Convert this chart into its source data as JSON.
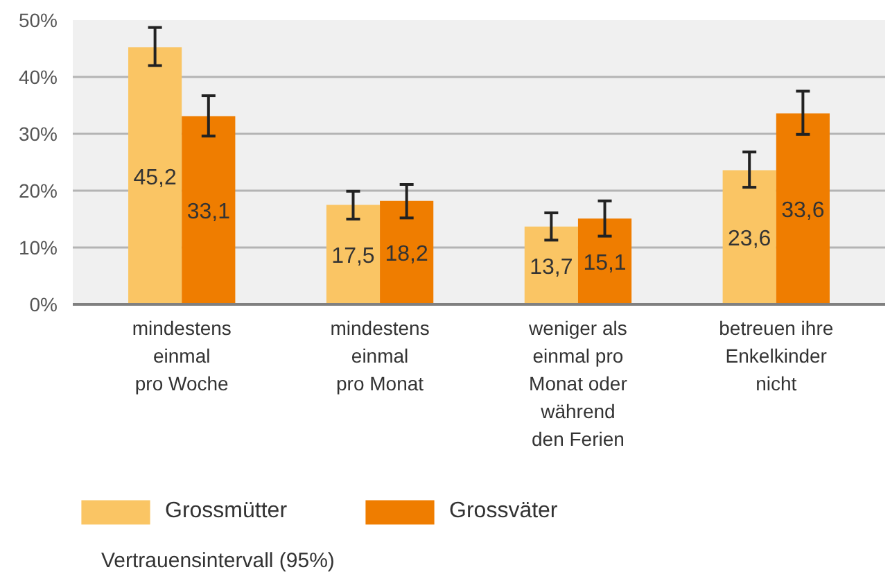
{
  "chart_data": {
    "type": "bar",
    "categories": [
      "mindestens\neinmal\npro Woche",
      "mindestens\neinmal\npro Monat",
      "weniger als\neinmal pro\nMonat oder\nwährend\nden Ferien",
      "betreuen ihre\nEnkelkinder\nnicht"
    ],
    "series": [
      {
        "name": "Grossmütter",
        "color": "#fac564",
        "values": [
          45.2,
          17.5,
          13.7,
          23.6
        ],
        "value_labels": [
          "45,2",
          "17,5",
          "13,7",
          "23,6"
        ],
        "errors": [
          [
            42.0,
            48.7
          ],
          [
            15.0,
            19.9
          ],
          [
            11.3,
            16.1
          ],
          [
            20.6,
            26.8
          ]
        ]
      },
      {
        "name": "Grossväter",
        "color": "#ef7d00",
        "values": [
          33.1,
          18.2,
          15.1,
          33.6
        ],
        "value_labels": [
          "33,1",
          "18,2",
          "15,1",
          "33,6"
        ],
        "errors": [
          [
            29.6,
            36.7
          ],
          [
            15.2,
            21.1
          ],
          [
            12.0,
            18.2
          ],
          [
            29.9,
            37.5
          ]
        ]
      }
    ],
    "ylim": [
      0,
      50
    ],
    "yticks": [
      {
        "value": 0,
        "label": "0%"
      },
      {
        "value": 10,
        "label": "10%"
      },
      {
        "value": 20,
        "label": "20%"
      },
      {
        "value": 30,
        "label": "30%"
      },
      {
        "value": 40,
        "label": "40%"
      },
      {
        "value": 50,
        "label": "50%"
      }
    ],
    "grid": "y",
    "legend": "bottom",
    "annotations": [
      "Vertrauensintervall (95%)"
    ]
  }
}
